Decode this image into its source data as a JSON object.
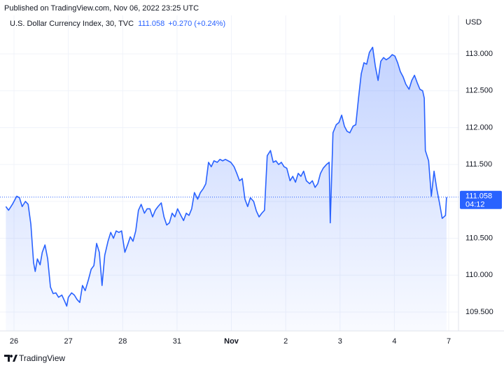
{
  "published": "Published on TradingView.com, Nov 06, 2022 23:25 UTC",
  "brand": "TradingView",
  "chart_data": {
    "type": "area",
    "currency": "USD",
    "change_label": "+0.270 (+0.24%)",
    "last_price": 111.058,
    "countdown": "04:12",
    "grid": true,
    "xlim": [
      -0.258,
      8.18
    ],
    "ylim": [
      109.244,
      113.522
    ],
    "xticks": [
      {
        "value": 0,
        "label": "26"
      },
      {
        "value": 1,
        "label": "27"
      },
      {
        "value": 2,
        "label": "28"
      },
      {
        "value": 3,
        "label": "31"
      },
      {
        "value": 4,
        "label": "Nov"
      },
      {
        "value": 5,
        "label": "2"
      },
      {
        "value": 6,
        "label": "3"
      },
      {
        "value": 7,
        "label": "4"
      },
      {
        "value": 8,
        "label": "7"
      }
    ],
    "yticks": [
      {
        "value": 109.5,
        "label": "109.500"
      },
      {
        "value": 110,
        "label": "110.000"
      },
      {
        "value": 110.5,
        "label": "110.500"
      },
      {
        "value": 111,
        "label": "111.000"
      },
      {
        "value": 111.5,
        "label": "111.500"
      },
      {
        "value": 112,
        "label": "112.000"
      },
      {
        "value": 112.5,
        "label": "112.500"
      },
      {
        "value": 113,
        "label": "113.000"
      }
    ],
    "x": [
      -0.15,
      -0.1,
      -0.03,
      0.05,
      0.1,
      0.15,
      0.21,
      0.26,
      0.31,
      0.36,
      0.39,
      0.43,
      0.48,
      0.52,
      0.57,
      0.62,
      0.67,
      0.72,
      0.77,
      0.82,
      0.88,
      0.93,
      0.97,
      1.0,
      1.06,
      1.11,
      1.16,
      1.21,
      1.26,
      1.31,
      1.37,
      1.42,
      1.47,
      1.52,
      1.57,
      1.62,
      1.67,
      1.73,
      1.78,
      1.83,
      1.88,
      1.93,
      1.98,
      2.04,
      2.09,
      2.14,
      2.19,
      2.24,
      2.29,
      2.34,
      2.4,
      2.45,
      2.5,
      2.55,
      2.6,
      2.65,
      2.71,
      2.76,
      2.81,
      2.86,
      2.91,
      2.96,
      3.01,
      3.07,
      3.12,
      3.17,
      3.22,
      3.27,
      3.32,
      3.38,
      3.43,
      3.48,
      3.53,
      3.58,
      3.63,
      3.68,
      3.74,
      3.79,
      3.84,
      3.89,
      3.94,
      3.99,
      4.05,
      4.1,
      4.15,
      4.2,
      4.25,
      4.3,
      4.35,
      4.41,
      4.46,
      4.51,
      4.56,
      4.61,
      4.66,
      4.72,
      4.77,
      4.82,
      4.87,
      4.92,
      4.97,
      5.02,
      5.08,
      5.13,
      5.18,
      5.23,
      5.28,
      5.33,
      5.38,
      5.44,
      5.49,
      5.54,
      5.59,
      5.64,
      5.69,
      5.75,
      5.8,
      5.82,
      5.87,
      5.93,
      5.98,
      6.03,
      6.08,
      6.13,
      6.18,
      6.24,
      6.29,
      6.34,
      6.39,
      6.44,
      6.49,
      6.54,
      6.6,
      6.65,
      6.7,
      6.75,
      6.8,
      6.85,
      6.91,
      6.96,
      7.01,
      7.06,
      7.11,
      7.16,
      7.21,
      7.27,
      7.32,
      7.37,
      7.42,
      7.47,
      7.52,
      7.55,
      7.57,
      7.63,
      7.68,
      7.73,
      7.78,
      7.83,
      7.88,
      7.94,
      7.96
    ],
    "series": [
      {
        "name": "U.S. Dollar Currency Index, 30, TVC",
        "color": "#2962ff",
        "values": [
          110.93,
          110.88,
          110.96,
          111.07,
          111.05,
          110.93,
          111.0,
          110.96,
          110.69,
          110.17,
          110.05,
          110.22,
          110.14,
          110.31,
          110.41,
          110.22,
          109.84,
          109.75,
          109.76,
          109.7,
          109.73,
          109.65,
          109.58,
          109.7,
          109.76,
          109.73,
          109.67,
          109.63,
          109.86,
          109.79,
          109.94,
          110.08,
          110.13,
          110.43,
          110.31,
          109.86,
          110.27,
          110.46,
          110.58,
          110.5,
          110.6,
          110.58,
          110.6,
          110.31,
          110.41,
          110.52,
          110.46,
          110.6,
          110.88,
          110.96,
          110.84,
          110.9,
          110.9,
          110.79,
          110.88,
          110.93,
          110.98,
          110.79,
          110.68,
          110.71,
          110.84,
          110.79,
          110.9,
          110.81,
          110.74,
          110.84,
          110.81,
          110.9,
          111.12,
          111.03,
          111.12,
          111.17,
          111.24,
          111.53,
          111.47,
          111.55,
          111.53,
          111.57,
          111.55,
          111.57,
          111.55,
          111.53,
          111.47,
          111.38,
          111.28,
          111.31,
          111.03,
          110.93,
          111.05,
          111.0,
          110.87,
          110.79,
          110.84,
          110.88,
          111.62,
          111.69,
          111.53,
          111.55,
          111.5,
          111.53,
          111.47,
          111.45,
          111.28,
          111.34,
          111.26,
          111.38,
          111.34,
          111.41,
          111.28,
          111.24,
          111.28,
          111.19,
          111.24,
          111.38,
          111.45,
          111.5,
          111.53,
          110.71,
          111.93,
          112.04,
          112.07,
          112.17,
          112.02,
          111.95,
          111.93,
          112.02,
          112.04,
          112.4,
          112.73,
          112.88,
          112.86,
          113.02,
          113.09,
          112.83,
          112.64,
          112.9,
          112.95,
          112.92,
          112.95,
          112.99,
          112.97,
          112.88,
          112.76,
          112.69,
          112.59,
          112.52,
          112.64,
          112.71,
          112.61,
          112.52,
          112.5,
          112.4,
          111.69,
          111.55,
          111.07,
          111.41,
          111.17,
          110.98,
          110.77,
          110.81,
          111.058
        ]
      }
    ]
  }
}
